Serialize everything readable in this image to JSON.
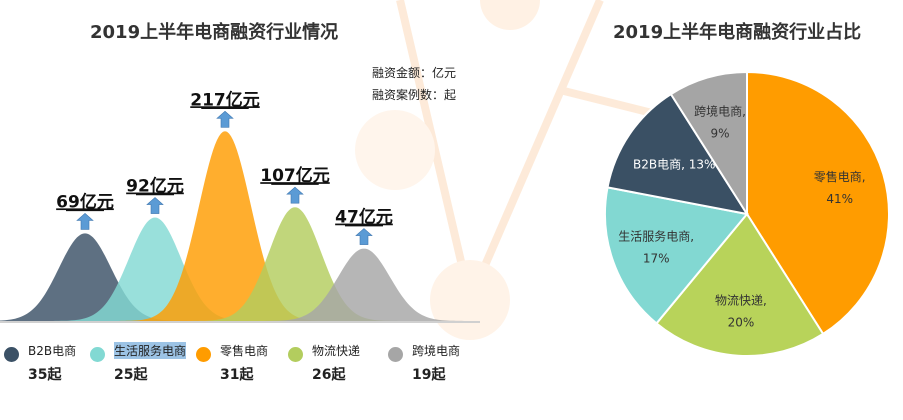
{
  "left_chart": {
    "title": "2019上半年电商融资行业情况",
    "notes": [
      "融资金额：亿元",
      "融资案例数：起"
    ]
  },
  "right_chart": {
    "title": "2019上半年电商融资行业占比"
  },
  "chart_data": [
    {
      "type": "area",
      "title": "2019上半年电商融资行业情况",
      "categories": [
        "B2B电商",
        "生活服务电商",
        "零售电商",
        "物流快递",
        "跨境电商"
      ],
      "series": [
        {
          "name": "融资金额",
          "unit": "亿元",
          "values": [
            69,
            92,
            217,
            107,
            47
          ],
          "labels": [
            "69亿元",
            "92亿元",
            "217亿元",
            "107亿元",
            "47亿元"
          ]
        },
        {
          "name": "融资案例数",
          "unit": "起",
          "values": [
            35,
            25,
            31,
            26,
            19
          ],
          "labels": [
            "35起",
            "25起",
            "31起",
            "26起",
            "19起"
          ]
        }
      ],
      "colors": [
        "#3b5166",
        "#82d9d3",
        "#ff9c00",
        "#b3cd5e",
        "#a6a6a6"
      ],
      "legend": "bottom"
    },
    {
      "type": "pie",
      "title": "2019上半年电商融资行业占比",
      "slices": [
        {
          "label": "零售电商",
          "value": 41,
          "text": "41%",
          "color": "#ff9c00",
          "text_color": "#333333"
        },
        {
          "label": "物流快递",
          "value": 20,
          "text": "20%",
          "color": "#b8d35a",
          "text_color": "#333333"
        },
        {
          "label": "生活服务电商",
          "value": 17,
          "text": "17%",
          "color": "#82d8d2",
          "text_color": "#333333"
        },
        {
          "label": "B2B电商",
          "value": 13,
          "text": "13%",
          "color": "#3a5064",
          "text_color": "#ffffff"
        },
        {
          "label": "跨境电商",
          "value": 9,
          "text": "9%",
          "color": "#a5a5a5",
          "text_color": "#333333"
        }
      ]
    }
  ],
  "accent": "#5b9bd5"
}
